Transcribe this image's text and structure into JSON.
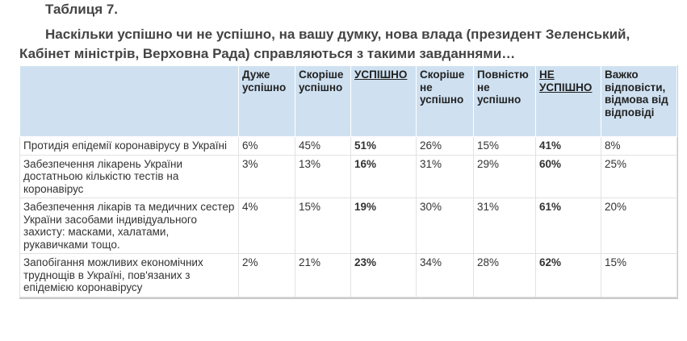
{
  "table_label": "Таблиця 7.",
  "question": "Наскільки успішно чи не успішно, на вашу думку, нова влада (президент Зеленський, Кабінет міністрів, Верховна Рада) справляються з такими завданнями…",
  "columns": [
    "",
    "Дуже успішно",
    "Скоріше успішно",
    "УСПІШНО",
    "Скоріше не успішно",
    "Повністю не успішно",
    "НЕ УСПІШНО",
    "Важко відповісти, відмова від відповіді"
  ],
  "rows": [
    {
      "task": "Протидія епідемії коронавірусу в Україні",
      "values": [
        "6%",
        "45%",
        "51%",
        "26%",
        "15%",
        "41%",
        "8%"
      ]
    },
    {
      "task": "Забезпечення лікарень України достатньою кількістю тестів на коронавірус",
      "values": [
        "3%",
        "13%",
        "16%",
        "31%",
        "29%",
        "60%",
        "25%"
      ]
    },
    {
      "task": "Забезпечення лікарів та медичних сестер України засобами індивідуального захисту: масками, халатами, рукавичками тощо.",
      "values": [
        "4%",
        "15%",
        "19%",
        "30%",
        "31%",
        "61%",
        "20%"
      ]
    },
    {
      "task": "Запобігання можливих економічних труднощів в Україні, пов'язаних з епідемією коронавірусу",
      "values": [
        "2%",
        "21%",
        "23%",
        "34%",
        "28%",
        "62%",
        "15%"
      ]
    }
  ]
}
